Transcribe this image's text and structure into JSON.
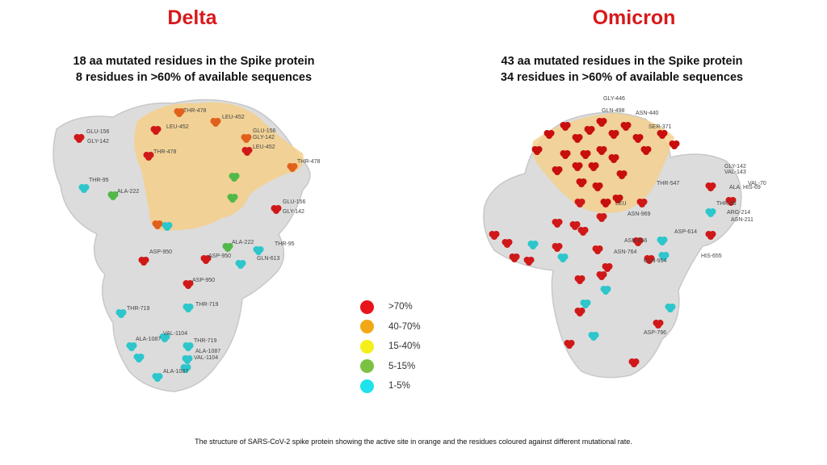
{
  "delta": {
    "title": "Delta",
    "line1": "18 aa mutated residues in the Spike protein",
    "line2": "8 residues in >60% of available sequences",
    "residue_labels": [
      "THR-478",
      "LEU-452",
      "GLU-156",
      "GLY-142",
      "LEU-452",
      "GLU-156",
      "GLY-142",
      "LEU-452",
      "THR-478",
      "THR-478",
      "THR-95",
      "ALA-222",
      "GLU-156",
      "GLY-142",
      "ALA-222",
      "THR-95",
      "ASP-950",
      "ASP-950",
      "GLN-613",
      "ASP-950",
      "THR-719",
      "THR-719",
      "VAL-1104",
      "ALA-1087",
      "THR-719",
      "ALA-1087",
      "VAL-1104",
      "ALA-1087"
    ]
  },
  "omicron": {
    "title": "Omicron",
    "line1": "43 aa mutated residues in the Spike protein",
    "line2": "34 residues in >60% of available sequences",
    "residue_labels": [
      "GLY-446",
      "GLN-498",
      "ASN-440",
      "SER-371",
      "THR-547",
      "GLY-142",
      "VAL-143",
      "VAL-70",
      "ALA",
      "HIS-69",
      "THR-95",
      "ARG-214",
      "ASN-211",
      "LEU",
      "ASN-969",
      "ASP-614",
      "ASN-856",
      "ASN-764",
      "GLN-954",
      "HIS-655",
      "ASP-796"
    ]
  },
  "legend": [
    {
      "label": ">70%",
      "color": "#e8141c"
    },
    {
      "label": "40-70%",
      "color": "#f2a814"
    },
    {
      "label": "15-40%",
      "color": "#f6ee1a"
    },
    {
      "label": "5-15%",
      "color": "#7cc242"
    },
    {
      "label": "1-5%",
      "color": "#1ee3ec"
    }
  ],
  "colors": {
    "active_site": "#f5cf8a",
    "protein": "#d4d4d4",
    "title": "#d7191c"
  },
  "caption": "The structure of SARS-CoV-2 spike protein showing the active site in orange and the residues coloured against different mutational rate."
}
